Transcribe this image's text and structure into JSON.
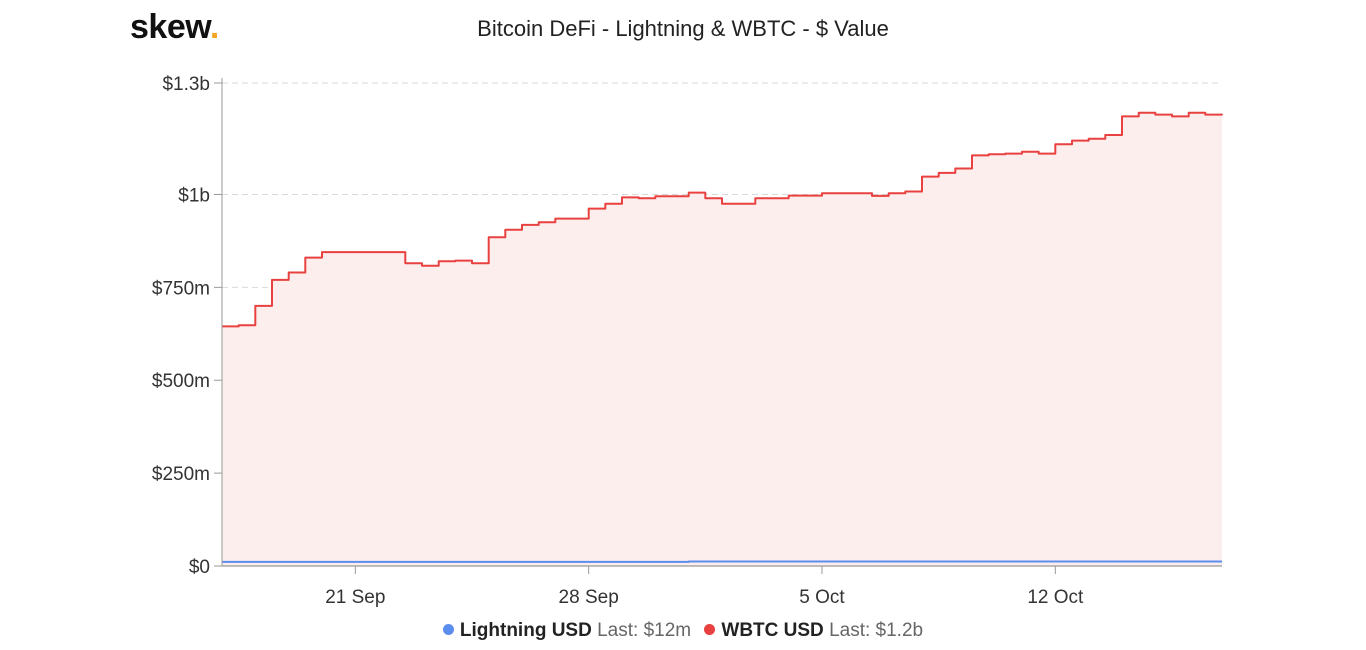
{
  "brand": {
    "name": "skew",
    "dot": "."
  },
  "chart_data": {
    "type": "area",
    "title": "Bitcoin DeFi - Lightning & WBTC - $ Value",
    "xlabel": "",
    "ylabel": "",
    "x_range": [
      "2020-09-17",
      "2020-10-17"
    ],
    "ylim": [
      0,
      1300000000
    ],
    "y_ticks": [
      0,
      250000000,
      500000000,
      750000000,
      1000000000,
      1300000000
    ],
    "y_tick_labels": [
      "$0",
      "$250m",
      "$500m",
      "$750m",
      "$1b",
      "$1.3b"
    ],
    "x_ticks": [
      "2020-09-21",
      "2020-09-28",
      "2020-10-05",
      "2020-10-12"
    ],
    "x_tick_labels": [
      "21 Sep",
      "28 Sep",
      "5 Oct",
      "12 Oct"
    ],
    "grid": true,
    "legend_position": "bottom",
    "series": [
      {
        "name": "Lightning USD",
        "last_label": "Last: $12m",
        "color": "#5b8def",
        "x": [
          "2020-09-17",
          "2020-09-24",
          "2020-10-01",
          "2020-10-08",
          "2020-10-17"
        ],
        "values": [
          11000000,
          11000000,
          12000000,
          12000000,
          12000000
        ]
      },
      {
        "name": "WBTC USD",
        "last_label": "Last: $1.2b",
        "color": "#e8413f",
        "fill": "#fdeeee",
        "x": [
          "2020-09-17",
          "2020-09-17T12:00",
          "2020-09-18",
          "2020-09-18T12:00",
          "2020-09-19",
          "2020-09-19T12:00",
          "2020-09-20",
          "2020-09-20T12:00",
          "2020-09-21",
          "2020-09-22",
          "2020-09-22T12:00",
          "2020-09-23",
          "2020-09-23T12:00",
          "2020-09-24",
          "2020-09-24T12:00",
          "2020-09-25",
          "2020-09-25T12:00",
          "2020-09-26",
          "2020-09-26T12:00",
          "2020-09-27",
          "2020-09-27T12:00",
          "2020-09-28",
          "2020-09-28T12:00",
          "2020-09-29",
          "2020-09-29T12:00",
          "2020-09-30",
          "2020-10-01",
          "2020-10-01T12:00",
          "2020-10-02",
          "2020-10-03",
          "2020-10-04",
          "2020-10-05",
          "2020-10-06",
          "2020-10-06T12:00",
          "2020-10-07",
          "2020-10-07T12:00",
          "2020-10-08",
          "2020-10-08T12:00",
          "2020-10-09",
          "2020-10-09T12:00",
          "2020-10-10",
          "2020-10-10T12:00",
          "2020-10-11",
          "2020-10-11T12:00",
          "2020-10-12",
          "2020-10-12T12:00",
          "2020-10-13",
          "2020-10-13T12:00",
          "2020-10-14",
          "2020-10-14T12:00",
          "2020-10-15",
          "2020-10-15T12:00",
          "2020-10-16",
          "2020-10-16T12:00",
          "2020-10-17"
        ],
        "values": [
          645000000,
          648000000,
          700000000,
          770000000,
          790000000,
          830000000,
          845000000,
          845000000,
          845000000,
          845000000,
          815000000,
          808000000,
          820000000,
          822000000,
          815000000,
          885000000,
          905000000,
          918000000,
          925000000,
          935000000,
          935000000,
          962000000,
          975000000,
          992000000,
          990000000,
          995000000,
          1005000000,
          990000000,
          975000000,
          990000000,
          997000000,
          1003000000,
          1003000000,
          996000000,
          1003000000,
          1008000000,
          1048000000,
          1058000000,
          1070000000,
          1105000000,
          1108000000,
          1110000000,
          1115000000,
          1110000000,
          1135000000,
          1145000000,
          1150000000,
          1160000000,
          1210000000,
          1220000000,
          1215000000,
          1210000000,
          1220000000,
          1215000000,
          1213000000
        ]
      }
    ]
  }
}
